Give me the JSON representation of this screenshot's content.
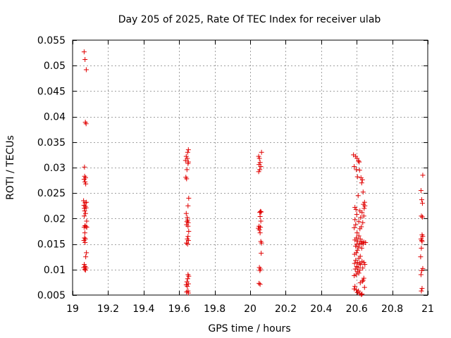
{
  "chart_data": {
    "type": "scatter",
    "title": "Day 205 of 2025, Rate Of TEC Index for receiver ulab",
    "xlabel": "GPS time / hours",
    "ylabel": "ROTI / TECUs",
    "xlim": [
      19,
      21
    ],
    "ylim": [
      0.005,
      0.055
    ],
    "xticks": [
      "19",
      "19.2",
      "19.4",
      "19.6",
      "19.8",
      "20",
      "20.2",
      "20.4",
      "20.6",
      "20.8",
      "21"
    ],
    "xtick_values": [
      19,
      19.2,
      19.4,
      19.6,
      19.8,
      20,
      20.2,
      20.4,
      20.6,
      20.8,
      21
    ],
    "yticks": [
      "0.005",
      "0.01",
      "0.015",
      "0.02",
      "0.025",
      "0.03",
      "0.035",
      "0.04",
      "0.045",
      "0.05",
      "0.055"
    ],
    "ytick_values": [
      0.005,
      0.01,
      0.015,
      0.02,
      0.025,
      0.03,
      0.035,
      0.04,
      0.045,
      0.05,
      0.055
    ],
    "grid": true,
    "marker": "+",
    "color": "#e00000",
    "series": [
      {
        "name": "ROTI",
        "points": [
          [
            19.065,
            0.0527
          ],
          [
            19.07,
            0.0512
          ],
          [
            19.077,
            0.0492
          ],
          [
            19.072,
            0.0389
          ],
          [
            19.076,
            0.0386
          ],
          [
            19.067,
            0.0301
          ],
          [
            19.068,
            0.0283
          ],
          [
            19.073,
            0.028
          ],
          [
            19.065,
            0.0277
          ],
          [
            19.07,
            0.0272
          ],
          [
            19.074,
            0.0268
          ],
          [
            19.062,
            0.0235
          ],
          [
            19.07,
            0.0231
          ],
          [
            19.078,
            0.0232
          ],
          [
            19.064,
            0.0226
          ],
          [
            19.072,
            0.0224
          ],
          [
            19.066,
            0.022
          ],
          [
            19.076,
            0.0221
          ],
          [
            19.068,
            0.0215
          ],
          [
            19.073,
            0.021
          ],
          [
            19.066,
            0.0205
          ],
          [
            19.079,
            0.0195
          ],
          [
            19.07,
            0.0186
          ],
          [
            19.075,
            0.0184
          ],
          [
            19.065,
            0.0183
          ],
          [
            19.08,
            0.0183
          ],
          [
            19.069,
            0.0172
          ],
          [
            19.067,
            0.0162
          ],
          [
            19.072,
            0.016
          ],
          [
            19.064,
            0.0157
          ],
          [
            19.07,
            0.0153
          ],
          [
            19.078,
            0.0133
          ],
          [
            19.074,
            0.0125
          ],
          [
            19.066,
            0.011
          ],
          [
            19.071,
            0.0106
          ],
          [
            19.063,
            0.0104
          ],
          [
            19.076,
            0.0103
          ],
          [
            19.068,
            0.01
          ],
          [
            19.073,
            0.0099
          ],
          [
            19.652,
            0.0335
          ],
          [
            19.648,
            0.033
          ],
          [
            19.64,
            0.0322
          ],
          [
            19.646,
            0.0318
          ],
          [
            19.636,
            0.0314
          ],
          [
            19.652,
            0.0311
          ],
          [
            19.65,
            0.0308
          ],
          [
            19.644,
            0.0296
          ],
          [
            19.638,
            0.0281
          ],
          [
            19.642,
            0.0278
          ],
          [
            19.654,
            0.024
          ],
          [
            19.65,
            0.0225
          ],
          [
            19.64,
            0.021
          ],
          [
            19.646,
            0.0202
          ],
          [
            19.648,
            0.0197
          ],
          [
            19.644,
            0.0194
          ],
          [
            19.651,
            0.0192
          ],
          [
            19.642,
            0.0188
          ],
          [
            19.65,
            0.0185
          ],
          [
            19.654,
            0.0175
          ],
          [
            19.65,
            0.0165
          ],
          [
            19.646,
            0.016
          ],
          [
            19.652,
            0.0157
          ],
          [
            19.641,
            0.0152
          ],
          [
            19.648,
            0.015
          ],
          [
            19.65,
            0.009
          ],
          [
            19.654,
            0.0087
          ],
          [
            19.648,
            0.0082
          ],
          [
            19.644,
            0.0076
          ],
          [
            19.652,
            0.0072
          ],
          [
            19.64,
            0.007
          ],
          [
            19.646,
            0.0067
          ],
          [
            19.65,
            0.0058
          ],
          [
            19.642,
            0.0056
          ],
          [
            19.652,
            0.0054
          ],
          [
            20.064,
            0.033
          ],
          [
            20.048,
            0.0322
          ],
          [
            20.052,
            0.0318
          ],
          [
            20.056,
            0.031
          ],
          [
            20.05,
            0.0306
          ],
          [
            20.06,
            0.0302
          ],
          [
            20.054,
            0.0296
          ],
          [
            20.048,
            0.0292
          ],
          [
            20.058,
            0.0214
          ],
          [
            20.054,
            0.0212
          ],
          [
            20.062,
            0.0213
          ],
          [
            20.056,
            0.0204
          ],
          [
            20.06,
            0.0195
          ],
          [
            20.05,
            0.0185
          ],
          [
            20.058,
            0.0183
          ],
          [
            20.046,
            0.0181
          ],
          [
            20.052,
            0.0178
          ],
          [
            20.056,
            0.0172
          ],
          [
            20.06,
            0.0155
          ],
          [
            20.064,
            0.0152
          ],
          [
            20.062,
            0.0132
          ],
          [
            20.052,
            0.0104
          ],
          [
            20.058,
            0.0101
          ],
          [
            20.055,
            0.0098
          ],
          [
            20.05,
            0.0073
          ],
          [
            20.056,
            0.0071
          ],
          [
            20.582,
            0.0325
          ],
          [
            20.594,
            0.0322
          ],
          [
            20.602,
            0.0318
          ],
          [
            20.61,
            0.0313
          ],
          [
            20.614,
            0.0311
          ],
          [
            20.586,
            0.0302
          ],
          [
            20.598,
            0.0296
          ],
          [
            20.616,
            0.0295
          ],
          [
            20.604,
            0.0282
          ],
          [
            20.624,
            0.028
          ],
          [
            20.632,
            0.0276
          ],
          [
            20.628,
            0.027
          ],
          [
            20.636,
            0.0252
          ],
          [
            20.608,
            0.0245
          ],
          [
            20.644,
            0.0232
          ],
          [
            20.638,
            0.0228
          ],
          [
            20.646,
            0.0225
          ],
          [
            20.59,
            0.0222
          ],
          [
            20.642,
            0.022
          ],
          [
            20.596,
            0.0218
          ],
          [
            20.618,
            0.0215
          ],
          [
            20.63,
            0.0212
          ],
          [
            20.6,
            0.0208
          ],
          [
            20.64,
            0.0205
          ],
          [
            20.622,
            0.0202
          ],
          [
            20.59,
            0.0198
          ],
          [
            20.612,
            0.0194
          ],
          [
            20.634,
            0.0192
          ],
          [
            20.594,
            0.0188
          ],
          [
            20.626,
            0.0184
          ],
          [
            20.586,
            0.0182
          ],
          [
            20.618,
            0.018
          ],
          [
            20.602,
            0.0172
          ],
          [
            20.612,
            0.0166
          ],
          [
            20.598,
            0.0162
          ],
          [
            20.62,
            0.016
          ],
          [
            20.59,
            0.0158
          ],
          [
            20.606,
            0.0156
          ],
          [
            20.63,
            0.0155
          ],
          [
            20.64,
            0.0154
          ],
          [
            20.65,
            0.0153
          ],
          [
            20.6,
            0.015
          ],
          [
            20.616,
            0.015
          ],
          [
            20.624,
            0.0152
          ],
          [
            20.636,
            0.015
          ],
          [
            20.594,
            0.0146
          ],
          [
            20.61,
            0.0144
          ],
          [
            20.628,
            0.0142
          ],
          [
            20.604,
            0.0138
          ],
          [
            20.598,
            0.0133
          ],
          [
            20.588,
            0.013
          ],
          [
            20.62,
            0.0126
          ],
          [
            20.612,
            0.0122
          ],
          [
            20.594,
            0.0118
          ],
          [
            20.604,
            0.0114
          ],
          [
            20.63,
            0.0116
          ],
          [
            20.64,
            0.0114
          ],
          [
            20.588,
            0.0112
          ],
          [
            20.616,
            0.0112
          ],
          [
            20.622,
            0.011
          ],
          [
            20.646,
            0.011
          ],
          [
            20.6,
            0.0106
          ],
          [
            20.608,
            0.0104
          ],
          [
            20.634,
            0.0103
          ],
          [
            20.592,
            0.0101
          ],
          [
            20.618,
            0.0099
          ],
          [
            20.604,
            0.0096
          ],
          [
            20.612,
            0.0093
          ],
          [
            20.596,
            0.009
          ],
          [
            20.586,
            0.0088
          ],
          [
            20.64,
            0.0083
          ],
          [
            20.636,
            0.0079
          ],
          [
            20.632,
            0.0077
          ],
          [
            20.62,
            0.0074
          ],
          [
            20.59,
            0.0067
          ],
          [
            20.644,
            0.0065
          ],
          [
            20.586,
            0.0062
          ],
          [
            20.598,
            0.006
          ],
          [
            20.61,
            0.0058
          ],
          [
            20.604,
            0.0055
          ],
          [
            20.618,
            0.0053
          ],
          [
            20.63,
            0.0052
          ],
          [
            20.626,
            0.0051
          ],
          [
            20.972,
            0.0285
          ],
          [
            20.962,
            0.0255
          ],
          [
            20.966,
            0.0237
          ],
          [
            20.97,
            0.023
          ],
          [
            20.964,
            0.0205
          ],
          [
            20.97,
            0.0203
          ],
          [
            20.968,
            0.0168
          ],
          [
            20.972,
            0.0165
          ],
          [
            20.962,
            0.016
          ],
          [
            20.966,
            0.0157
          ],
          [
            20.968,
            0.0155
          ],
          [
            20.964,
            0.0142
          ],
          [
            20.96,
            0.0125
          ],
          [
            20.972,
            0.0102
          ],
          [
            20.966,
            0.0098
          ],
          [
            20.962,
            0.009
          ],
          [
            20.968,
            0.0063
          ],
          [
            20.964,
            0.0058
          ]
        ]
      }
    ]
  }
}
